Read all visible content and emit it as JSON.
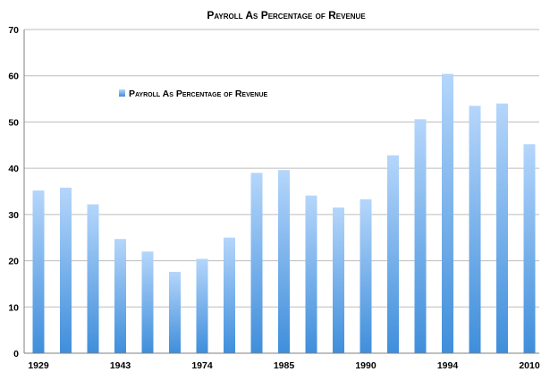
{
  "chart_data": {
    "type": "bar",
    "title": "Payroll As Percentage of Revenue",
    "xlabel": "",
    "ylabel": "",
    "categories": [
      "1929",
      "",
      "",
      "1943",
      "",
      "",
      "1974",
      "",
      "",
      "1985",
      "",
      "",
      "1990",
      "",
      "",
      "1994",
      "",
      "",
      "2010"
    ],
    "series": [
      {
        "name": "Payroll As Percentage of Revenue",
        "values": [
          35.2,
          35.8,
          32.2,
          24.7,
          22.0,
          17.6,
          20.4,
          25.0,
          39.0,
          39.6,
          34.1,
          31.5,
          33.3,
          42.8,
          50.6,
          60.4,
          53.5,
          54.0,
          45.2
        ]
      }
    ],
    "ylim": [
      0,
      70
    ],
    "yticks": [
      0,
      10,
      20,
      30,
      40,
      50,
      60,
      70
    ],
    "grid": true,
    "legend_position": "upper-left inside plot",
    "colors": {
      "bar_top": "#b5d6fb",
      "bar_bottom": "#3f8edb",
      "grid": "#bdbdbd",
      "axis": "#7f7f7f"
    }
  }
}
